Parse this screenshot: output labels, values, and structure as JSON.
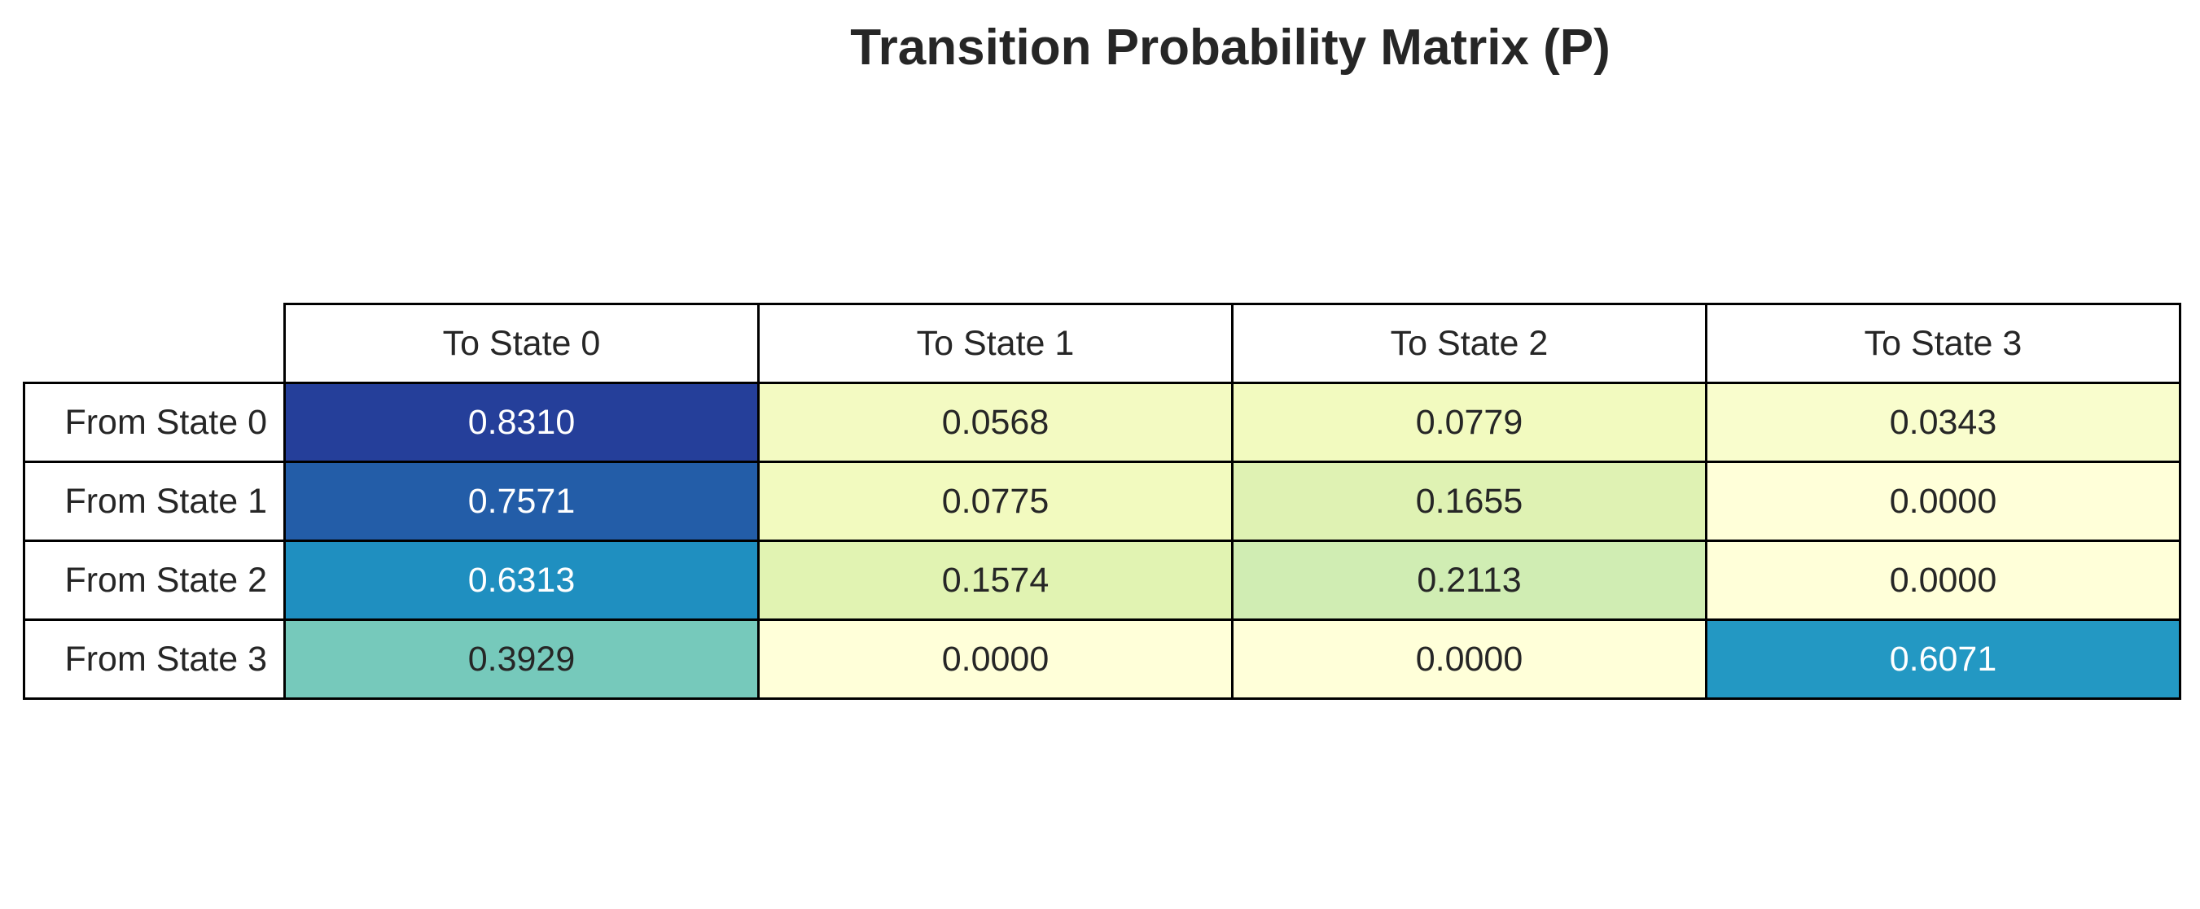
{
  "chart_data": {
    "type": "table",
    "title": "Transition Probability Matrix (P)",
    "columns": [
      "To State 0",
      "To State 1",
      "To State 2",
      "To State 3"
    ],
    "rows": [
      "From State 0",
      "From State 1",
      "From State 2",
      "From State 3"
    ],
    "values": [
      [
        "0.8310",
        "0.0568",
        "0.0779",
        "0.0343"
      ],
      [
        "0.7571",
        "0.0775",
        "0.1655",
        "0.0000"
      ],
      [
        "0.6313",
        "0.1574",
        "0.2113",
        "0.0000"
      ],
      [
        "0.3929",
        "0.0000",
        "0.0000",
        "0.6071"
      ]
    ],
    "colormap": "YlGnBu",
    "cell_colors": [
      [
        "#253f9a",
        "#f3fac2",
        "#f2fabf",
        "#f9fdcd"
      ],
      [
        "#235da8",
        "#f2fabf",
        "#dff2b3",
        "#ffffd9"
      ],
      [
        "#1f8fc0",
        "#e1f3b2",
        "#d0edb3",
        "#ffffd9"
      ],
      [
        "#76c9bb",
        "#ffffd9",
        "#ffffd9",
        "#2398c3"
      ]
    ],
    "text_colors": [
      [
        "#ffffff",
        "#262626",
        "#262626",
        "#262626"
      ],
      [
        "#ffffff",
        "#262626",
        "#262626",
        "#262626"
      ],
      [
        "#ffffff",
        "#262626",
        "#262626",
        "#262626"
      ],
      [
        "#262626",
        "#262626",
        "#262626",
        "#ffffff"
      ]
    ]
  }
}
